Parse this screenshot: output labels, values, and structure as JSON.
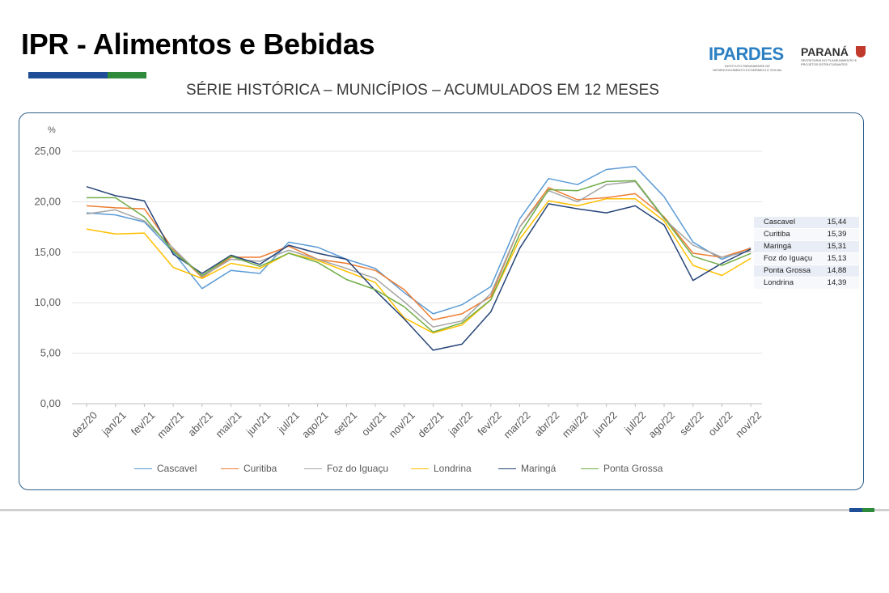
{
  "header": {
    "title": "IPR - Alimentos e Bebidas",
    "subtitle": "SÉRIE HISTÓRICA – MUNICÍPIOS – ACUMULADOS EM 12 MESES"
  },
  "logos": {
    "ipardes": "IPARDES",
    "ipardes_sub": "INSTITUTO PARANAENSE DE DESENVOLVIMENTO ECONÔMICO E SOCIAL",
    "parana": "PARANÁ",
    "parana_sub": "SECRETARIA DO PLANEJAMENTO E PROJETOS ESTRUTURANTES"
  },
  "colors": {
    "title_bar_blue": "#1f4e96",
    "title_bar_green": "#2e8b3c",
    "frame_border": "#2f5f8a"
  },
  "latest_table": [
    {
      "name": "Cascavel",
      "value": "15,44"
    },
    {
      "name": "Curitiba",
      "value": "15,39"
    },
    {
      "name": "Maringá",
      "value": "15,31"
    },
    {
      "name": "Foz do Iguaçu",
      "value": "15,13"
    },
    {
      "name": "Ponta Grossa",
      "value": "14,88"
    },
    {
      "name": "Londrina",
      "value": "14,39"
    }
  ],
  "chart_data": {
    "type": "line",
    "ylabel": "%",
    "ylim": [
      0,
      25
    ],
    "y_ticks": [
      "0,00",
      "5,00",
      "10,00",
      "15,00",
      "20,00",
      "25,00"
    ],
    "y_tick_values": [
      0,
      5,
      10,
      15,
      20,
      25
    ],
    "grid": true,
    "legend_position": "bottom",
    "x": [
      "dez/20",
      "jan/21",
      "fev/21",
      "mar/21",
      "abr/21",
      "mai/21",
      "jun/21",
      "jul/21",
      "ago/21",
      "set/21",
      "out/21",
      "nov/21",
      "dez/21",
      "jan/22",
      "fev/22",
      "mar/22",
      "abr/22",
      "mai/22",
      "jun/22",
      "jul/22",
      "ago/22",
      "set/22",
      "out/22",
      "nov/22"
    ],
    "series": [
      {
        "name": "Cascavel",
        "color": "#5b9bd5",
        "values": [
          18.9,
          18.7,
          18.0,
          15.0,
          11.4,
          13.2,
          12.9,
          16.0,
          15.5,
          14.3,
          13.4,
          11.0,
          8.9,
          9.8,
          11.6,
          18.3,
          22.3,
          21.7,
          23.2,
          23.5,
          20.5,
          16.0,
          14.3,
          15.44
        ]
      },
      {
        "name": "Curitiba",
        "color": "#ed7d31",
        "values": [
          19.6,
          19.4,
          19.3,
          15.3,
          12.5,
          14.5,
          14.5,
          15.6,
          14.3,
          13.9,
          13.2,
          11.3,
          8.3,
          8.9,
          10.6,
          17.5,
          21.4,
          20.2,
          20.4,
          20.8,
          18.5,
          14.9,
          14.5,
          15.39
        ]
      },
      {
        "name": "Foz do Iguaçu",
        "color": "#a5a5a5",
        "values": [
          18.8,
          19.2,
          18.1,
          15.4,
          12.6,
          14.3,
          14.1,
          15.2,
          14.3,
          13.4,
          12.4,
          10.1,
          7.6,
          8.2,
          10.9,
          17.5,
          21.1,
          20.0,
          21.7,
          22.0,
          18.3,
          15.7,
          14.5,
          15.13
        ]
      },
      {
        "name": "Londrina",
        "color": "#ffc000",
        "values": [
          17.3,
          16.8,
          16.9,
          13.5,
          12.4,
          13.9,
          13.4,
          14.9,
          14.2,
          13.1,
          12.0,
          8.5,
          7.0,
          7.8,
          10.3,
          16.3,
          20.1,
          19.6,
          20.3,
          20.3,
          18.1,
          13.7,
          12.7,
          14.39
        ]
      },
      {
        "name": "Maringá",
        "color": "#264478",
        "values": [
          21.5,
          20.6,
          20.1,
          14.8,
          12.9,
          14.7,
          13.8,
          15.7,
          14.9,
          14.3,
          11.2,
          8.4,
          5.3,
          5.9,
          9.1,
          15.4,
          19.8,
          19.3,
          18.9,
          19.6,
          17.7,
          12.2,
          13.9,
          15.31
        ]
      },
      {
        "name": "Ponta Grossa",
        "color": "#70ad47",
        "values": [
          20.4,
          20.4,
          18.5,
          15.1,
          12.7,
          14.6,
          13.6,
          14.9,
          14.0,
          12.3,
          11.3,
          9.6,
          7.1,
          8.0,
          10.3,
          16.8,
          21.2,
          21.1,
          22.0,
          22.1,
          18.4,
          14.6,
          13.7,
          14.88
        ]
      }
    ]
  }
}
